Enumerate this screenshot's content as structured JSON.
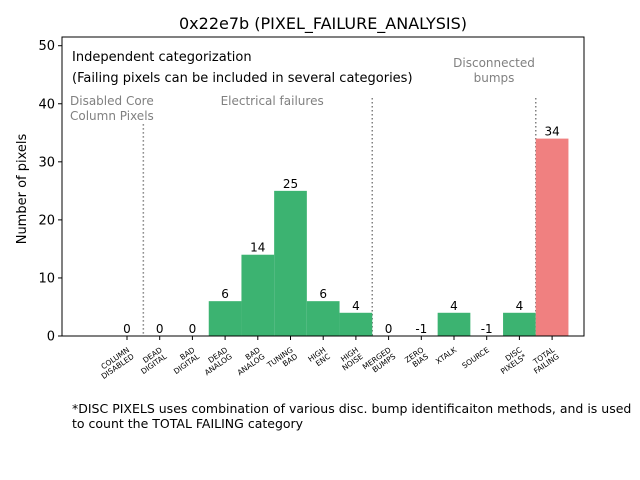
{
  "chart_data": {
    "type": "bar",
    "title": "0x22e7b (PIXEL_FAILURE_ANALYSIS)",
    "xlabel": "",
    "ylabel": "Number of pixels",
    "ylim": [
      0,
      51.5
    ],
    "yticks": [
      0,
      10,
      20,
      30,
      40,
      50
    ],
    "grid": false,
    "categories": [
      [
        "COLUMN",
        "DISABLED"
      ],
      [
        "DEAD",
        "DIGITAL"
      ],
      [
        "BAD",
        "DIGITAL"
      ],
      [
        "DEAD",
        "ANALOG"
      ],
      [
        "BAD",
        "ANALOG"
      ],
      [
        "TUNING",
        "BAD"
      ],
      [
        "HIGH",
        "ENC"
      ],
      [
        "HIGH",
        "NOISE"
      ],
      [
        "MERGED",
        "BUMPS"
      ],
      [
        "ZERO",
        "BIAS"
      ],
      [
        "XTALK"
      ],
      [
        "SOURCE"
      ],
      [
        "DISC",
        "PIXELS*"
      ],
      [
        "TOTAL",
        "FAILING"
      ]
    ],
    "values": [
      0,
      0,
      0,
      6,
      14,
      25,
      6,
      4,
      0,
      -1,
      4,
      -1,
      4,
      34
    ],
    "bar_labels": [
      "0",
      "0",
      "0",
      "6",
      "14",
      "25",
      "6",
      "4",
      "0",
      "-1",
      "4",
      "-1",
      "4",
      "34"
    ],
    "bar_colors": [
      "#3cb371",
      "#3cb371",
      "#3cb371",
      "#3cb371",
      "#3cb371",
      "#3cb371",
      "#3cb371",
      "#3cb371",
      "#3cb371",
      "#3cb371",
      "#3cb371",
      "#3cb371",
      "#3cb371",
      "#f08080"
    ],
    "separators": [
      {
        "after_index": 0,
        "top": 36.5
      },
      {
        "after_index": 7,
        "top": 41
      },
      {
        "after_index": 12,
        "top": 41
      }
    ],
    "group_labels": [
      {
        "lines": [
          "Disabled Core",
          "Column Pixels"
        ],
        "y": 40.5,
        "align": "left"
      },
      {
        "lines": [
          "Electrical failures"
        ],
        "y": 40.5,
        "align": "center"
      },
      {
        "lines": [
          "Disconnected",
          "bumps"
        ],
        "y": 47,
        "align": "center"
      }
    ],
    "annotations": [
      "Independent categorization",
      "(Failing pixels can be included in several categories)"
    ],
    "footnote": "*DISC PIXELS uses combination of various disc. bump identificaiton methods, and is used to count the TOTAL FAILING category",
    "colors": {
      "pass": "#3cb371",
      "total": "#f08080",
      "group_text": "#808080"
    }
  }
}
